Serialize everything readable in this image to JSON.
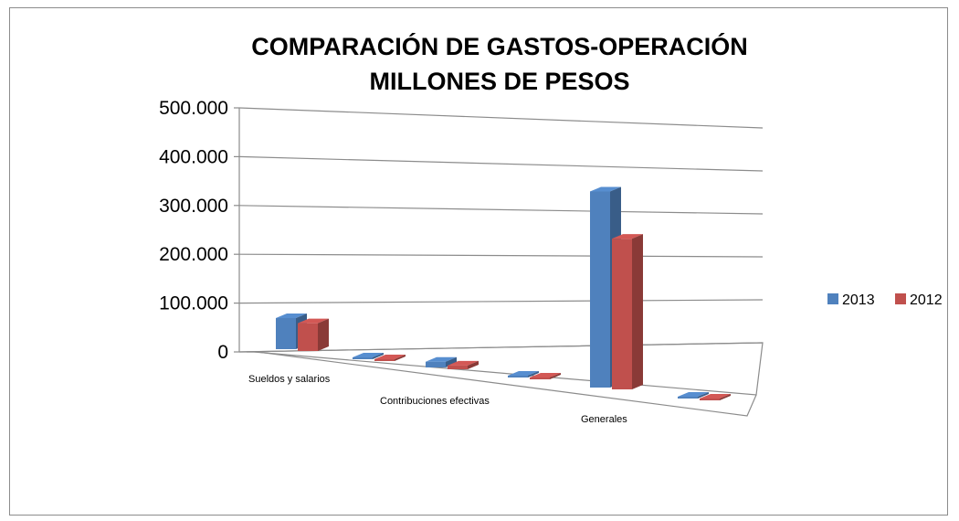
{
  "chart_data": {
    "type": "bar",
    "title": [
      "COMPARACIÓN DE GASTOS-OPERACIÓN",
      "MILLONES DE PESOS"
    ],
    "xlabel": "",
    "ylabel": "",
    "ylim": [
      0,
      500000
    ],
    "y_ticks": [
      "0",
      "100.000",
      "200.000",
      "300.000",
      "400.000",
      "500.000"
    ],
    "y_tick_values": [
      0,
      100000,
      200000,
      300000,
      400000,
      500000
    ],
    "categories": [
      "Sueldos y salarios",
      "",
      "Contribuciones efectivas",
      "",
      "Generales",
      ""
    ],
    "series": [
      {
        "name": "2013",
        "color": "#4f81bd",
        "values": [
          65000,
          2000,
          12000,
          2000,
          410000,
          2000
        ]
      },
      {
        "name": "2012",
        "color": "#c0504d",
        "values": [
          58000,
          2000,
          8000,
          2000,
          315000,
          2000
        ]
      }
    ],
    "grid": true,
    "legend_position": "right"
  }
}
